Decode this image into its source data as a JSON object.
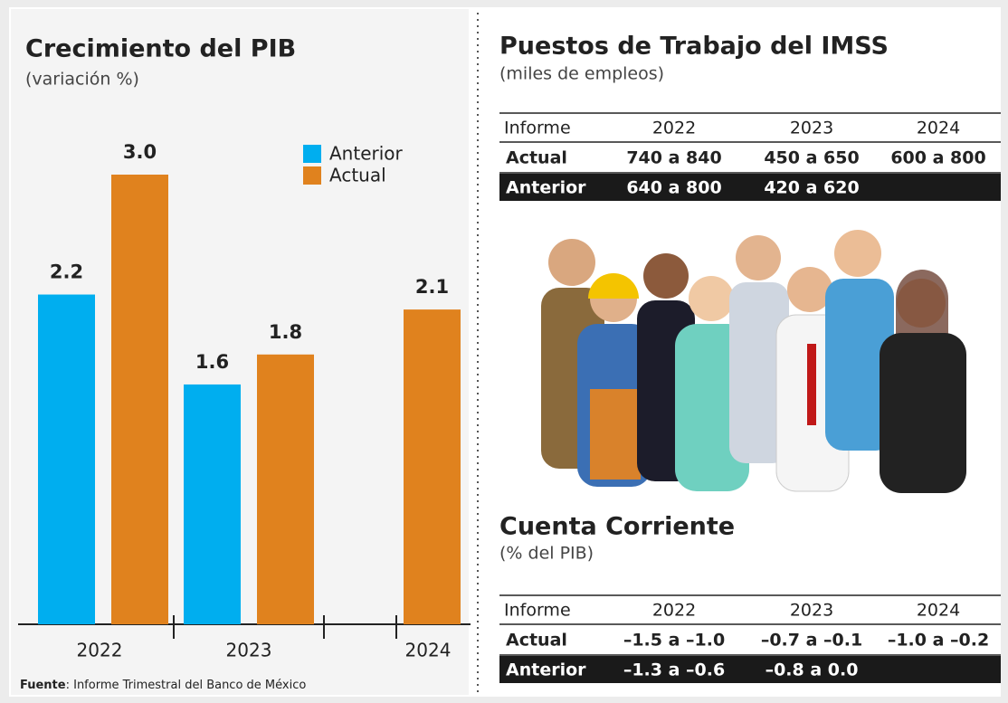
{
  "chart_data": {
    "type": "bar",
    "title": "Crecimiento del PIB",
    "subtitle": "(variación %)",
    "categories": [
      "2022",
      "2023",
      "2024"
    ],
    "series": [
      {
        "name": "Anterior",
        "color": "#00aeef",
        "values": [
          2.2,
          1.6,
          null
        ],
        "value_labels": [
          "2.2",
          "1.6",
          null
        ]
      },
      {
        "name": "Actual",
        "color": "#e0821e",
        "values": [
          3.0,
          1.8,
          2.1
        ],
        "value_labels": [
          "3.0",
          "1.8",
          "2.1"
        ]
      }
    ],
    "ylim": [
      0,
      3.0
    ],
    "grid": false,
    "legend": "top-right"
  },
  "tables": [
    {
      "title": "Puestos de Trabajo del IMSS",
      "subtitle": "(miles de empleos)",
      "header": [
        "Informe",
        "2022",
        "2023",
        "2024"
      ],
      "rows": [
        [
          "Actual",
          "740 a 840",
          "450 a 650",
          "600 a 800"
        ],
        [
          "Anterior",
          "640 a 800",
          "420 a 620"
        ]
      ]
    },
    {
      "title": "Cuenta Corriente",
      "subtitle": "(% del PIB)",
      "header": [
        "Informe",
        "2022",
        "2023",
        "2024"
      ],
      "rows": [
        [
          "Actual",
          "–1.5 a –1.0",
          "–0.7 a –0.1",
          "–1.0 a –0.2"
        ],
        [
          "Anterior",
          "–1.3 a –0.6",
          "–0.8 a 0.0"
        ]
      ]
    }
  ],
  "source": {
    "label": "Fuente",
    "text": ": Informe Trimestral del Banco de México"
  }
}
